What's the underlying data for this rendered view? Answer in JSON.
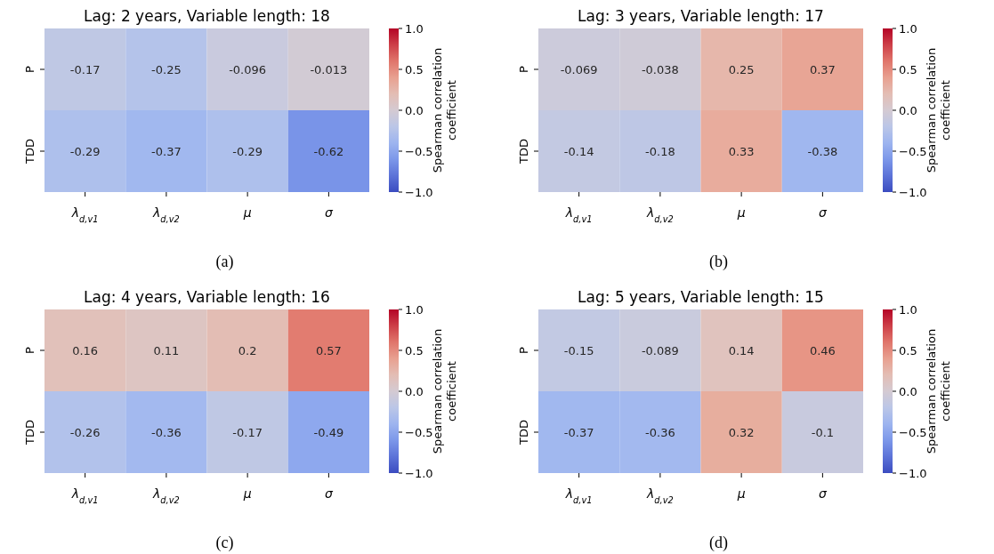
{
  "chart_data": [
    {
      "type": "heatmap",
      "title": "Lag: 2 years, Variable length: 18",
      "categories": [
        "λ$_{d,v1}$",
        "λ$_{d,v2}$",
        "μ",
        "σ"
      ],
      "y_categories": [
        "P",
        "TDD"
      ],
      "cells": [
        [
          -0.17,
          -0.25,
          -0.096,
          -0.013
        ],
        [
          -0.29,
          -0.37,
          -0.29,
          -0.62
        ]
      ],
      "clim": [
        -1,
        1
      ],
      "cticks": [
        {
          "value": -1,
          "label": "−1.0"
        },
        {
          "value": -0.5,
          "label": "−0.5"
        },
        {
          "value": 0,
          "label": "0.0"
        },
        {
          "value": 0.5,
          "label": "0.5"
        },
        {
          "value": 1,
          "label": "1.0"
        }
      ],
      "clabel": "Spearman correlation coefficient",
      "data_labels": true,
      "annotations": [
        "(a)"
      ]
    },
    {
      "type": "heatmap",
      "title": "Lag: 3 years, Variable length: 17",
      "categories": [
        "λ$_{d,v1}$",
        "λ$_{d,v2}$",
        "μ",
        "σ"
      ],
      "y_categories": [
        "P",
        "TDD"
      ],
      "cells": [
        [
          -0.069,
          -0.038,
          0.25,
          0.37
        ],
        [
          -0.14,
          -0.18,
          0.33,
          -0.38
        ]
      ],
      "clim": [
        -1,
        1
      ],
      "cticks": [
        {
          "value": -1,
          "label": "−1.0"
        },
        {
          "value": -0.5,
          "label": "−0.5"
        },
        {
          "value": 0,
          "label": "0.0"
        },
        {
          "value": 0.5,
          "label": "0.5"
        },
        {
          "value": 1,
          "label": "1.0"
        }
      ],
      "clabel": "Spearman correlation coefficient",
      "data_labels": true,
      "annotations": [
        "(b)"
      ]
    },
    {
      "type": "heatmap",
      "title": "Lag: 4 years, Variable length: 16",
      "categories": [
        "λ$_{d,v1}$",
        "λ$_{d,v2}$",
        "μ",
        "σ"
      ],
      "y_categories": [
        "P",
        "TDD"
      ],
      "cells": [
        [
          0.16,
          0.11,
          0.2,
          0.57
        ],
        [
          -0.26,
          -0.36,
          -0.17,
          -0.49
        ]
      ],
      "clim": [
        -1,
        1
      ],
      "cticks": [
        {
          "value": -1,
          "label": "−1.0"
        },
        {
          "value": -0.5,
          "label": "−0.5"
        },
        {
          "value": 0,
          "label": "0.0"
        },
        {
          "value": 0.5,
          "label": "0.5"
        },
        {
          "value": 1,
          "label": "1.0"
        }
      ],
      "clabel": "Spearman correlation coefficient",
      "data_labels": true,
      "annotations": [
        "(c)"
      ]
    },
    {
      "type": "heatmap",
      "title": "Lag: 5 years, Variable length: 15",
      "categories": [
        "λ$_{d,v1}$",
        "λ$_{d,v2}$",
        "μ",
        "σ"
      ],
      "y_categories": [
        "P",
        "TDD"
      ],
      "cells": [
        [
          -0.15,
          -0.089,
          0.14,
          0.46
        ],
        [
          -0.37,
          -0.36,
          0.32,
          -0.1
        ]
      ],
      "clim": [
        -1,
        1
      ],
      "cticks": [
        {
          "value": -1,
          "label": "−1.0"
        },
        {
          "value": -0.5,
          "label": "−0.5"
        },
        {
          "value": 0,
          "label": "0.0"
        },
        {
          "value": 0.5,
          "label": "0.5"
        },
        {
          "value": 1,
          "label": "1.0"
        }
      ],
      "clabel": "Spearman correlation coefficient",
      "data_labels": true,
      "annotations": [
        "(d)"
      ]
    }
  ]
}
